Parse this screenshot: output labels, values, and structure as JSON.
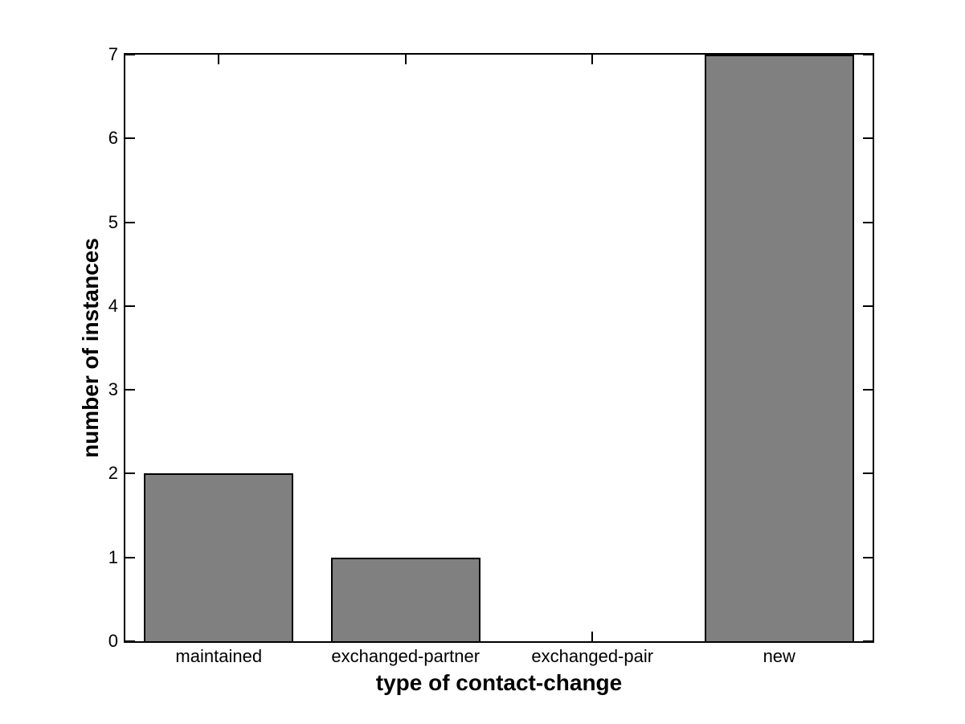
{
  "figure": {
    "background": "#ffffff"
  },
  "chart_data": {
    "type": "bar",
    "categories": [
      "maintained",
      "exchanged-partner",
      "exchanged-pair",
      "new"
    ],
    "values": [
      2,
      1,
      0,
      7
    ],
    "title": "",
    "xlabel": "type of contact-change",
    "ylabel": "number of instances",
    "xlim": [
      0.5,
      4.5
    ],
    "ylim": [
      0,
      7
    ],
    "yticks": [
      0,
      1,
      2,
      3,
      4,
      5,
      6,
      7
    ],
    "bar_width_fraction": 0.8,
    "bar_color": "#808080",
    "bar_edge_color": "#000000",
    "axis_color": "#000000",
    "tick_label_color": "#000000",
    "grid": false,
    "legend": null
  }
}
